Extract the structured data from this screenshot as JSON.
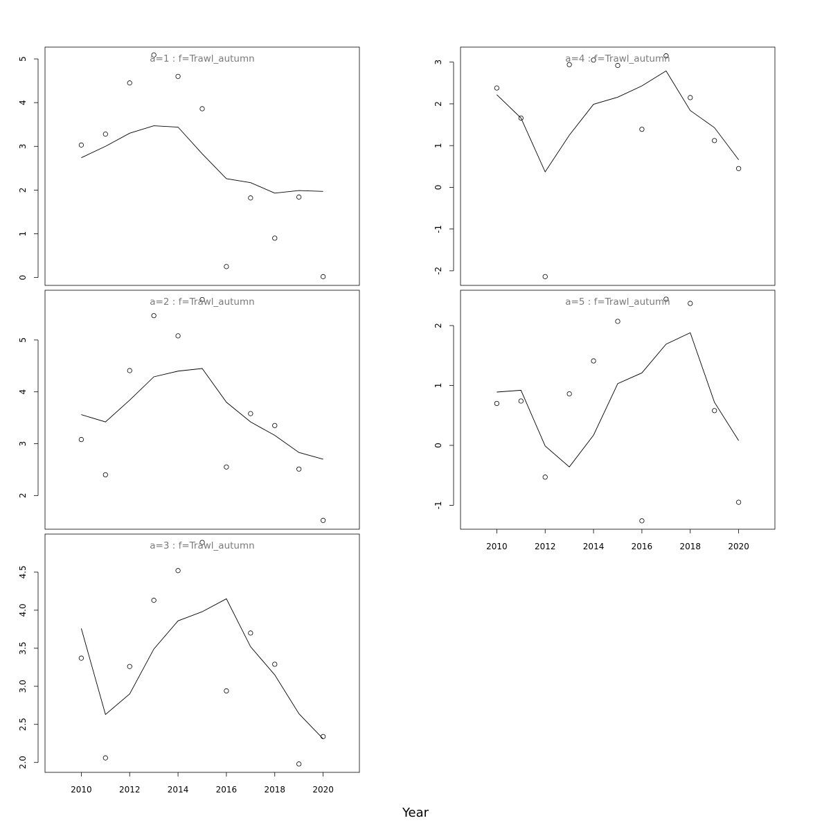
{
  "figure": {
    "xlabel": "Year"
  },
  "chart_data": [
    {
      "type": "scatter+line",
      "title": "a=1  :  f=Trawl_autumn",
      "x": [
        2010,
        2011,
        2012,
        2013,
        2014,
        2015,
        2016,
        2017,
        2018,
        2019,
        2020
      ],
      "observed": [
        3.03,
        3.28,
        4.45,
        5.09,
        4.6,
        3.86,
        0.25,
        1.82,
        0.9,
        1.84,
        0.02
      ],
      "fitted": [
        2.74,
        3.0,
        3.3,
        3.47,
        3.44,
        2.83,
        2.26,
        2.17,
        1.93,
        1.99,
        1.97
      ],
      "xlim": [
        2008.5,
        2021.5
      ],
      "ylim": [
        -0.18,
        5.27
      ],
      "yticks": [
        0,
        1,
        2,
        3,
        4,
        5
      ],
      "show_xaxis": false
    },
    {
      "type": "scatter+line",
      "title": "a=2  :  f=Trawl_autumn",
      "x": [
        2010,
        2011,
        2012,
        2013,
        2014,
        2015,
        2016,
        2017,
        2018,
        2019,
        2020
      ],
      "observed": [
        3.08,
        2.4,
        4.41,
        5.47,
        5.08,
        5.78,
        2.55,
        3.58,
        3.35,
        2.51,
        1.52
      ],
      "fitted": [
        3.56,
        3.42,
        3.84,
        4.29,
        4.4,
        4.45,
        3.8,
        3.42,
        3.16,
        2.83,
        2.7
      ],
      "xlim": [
        2008.5,
        2021.5
      ],
      "ylim": [
        1.35,
        5.96
      ],
      "yticks": [
        2,
        3,
        4,
        5
      ],
      "show_xaxis": false
    },
    {
      "type": "scatter+line",
      "title": "a=3  :  f=Trawl_autumn",
      "x": [
        2010,
        2011,
        2012,
        2013,
        2014,
        2015,
        2016,
        2017,
        2018,
        2019,
        2020
      ],
      "observed": [
        3.37,
        2.06,
        3.26,
        4.13,
        4.52,
        4.89,
        2.94,
        3.7,
        3.29,
        1.98,
        2.34
      ],
      "fitted": [
        3.76,
        2.63,
        2.9,
        3.49,
        3.86,
        3.98,
        4.15,
        3.52,
        3.15,
        2.64,
        2.31
      ],
      "xlim": [
        2008.5,
        2021.5
      ],
      "ylim": [
        1.87,
        5.0
      ],
      "yticks": [
        2.0,
        2.5,
        3.0,
        3.5,
        4.0,
        4.5
      ],
      "ytick_labels": [
        "2.0",
        "2.5",
        "3.0",
        "3.5",
        "4.0",
        "4.5"
      ],
      "show_xaxis": true
    },
    {
      "type": "scatter+line",
      "title": "a=4  :  f=Trawl_autumn",
      "x": [
        2010,
        2011,
        2012,
        2013,
        2014,
        2015,
        2016,
        2017,
        2018,
        2019,
        2020
      ],
      "observed": [
        2.38,
        1.66,
        -2.14,
        2.94,
        3.05,
        2.92,
        1.39,
        3.15,
        2.15,
        1.12,
        0.45
      ],
      "fitted": [
        2.22,
        1.66,
        0.37,
        1.25,
        1.99,
        2.16,
        2.43,
        2.79,
        1.84,
        1.43,
        0.66
      ],
      "xlim": [
        2008.5,
        2021.5
      ],
      "ylim": [
        -2.35,
        3.36
      ],
      "yticks": [
        -2,
        -1,
        0,
        1,
        2,
        3
      ],
      "show_xaxis": false
    },
    {
      "type": "scatter+line",
      "title": "a=5  :  f=Trawl_autumn",
      "x": [
        2010,
        2011,
        2012,
        2013,
        2014,
        2015,
        2016,
        2017,
        2018,
        2019,
        2020
      ],
      "observed": [
        0.7,
        0.74,
        -0.53,
        0.86,
        1.41,
        2.07,
        -1.26,
        2.44,
        2.37,
        0.58,
        -0.95
      ],
      "fitted": [
        0.89,
        0.92,
        -0.01,
        -0.36,
        0.17,
        1.03,
        1.21,
        1.69,
        1.88,
        0.72,
        0.08
      ],
      "xlim": [
        2008.5,
        2021.5
      ],
      "ylim": [
        -1.4,
        2.59
      ],
      "yticks": [
        -1,
        0,
        1,
        2
      ],
      "show_xaxis": true
    }
  ]
}
